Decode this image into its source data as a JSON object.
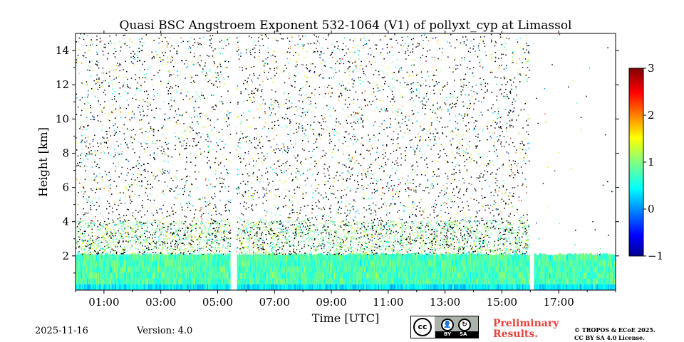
{
  "chart_data": {
    "type": "heatmap",
    "title": "Quasi BSC Angstroem Exponent 532-1064 (V1) of pollyxt_cyp at Limassol",
    "xlabel": "Time [UTC]",
    "ylabel": "Height [km]",
    "x_tick_labels": [
      "01:00",
      "03:00",
      "05:00",
      "07:00",
      "09:00",
      "11:00",
      "13:00",
      "15:00",
      "17:00"
    ],
    "x_ticks_hours": [
      1,
      3,
      5,
      7,
      9,
      11,
      13,
      15,
      17
    ],
    "xlim_hours": [
      0,
      19
    ],
    "y_tick_labels": [
      "2",
      "4",
      "6",
      "8",
      "10",
      "12",
      "14"
    ],
    "y_ticks": [
      2,
      4,
      6,
      8,
      10,
      12,
      14
    ],
    "ylim": [
      0,
      15
    ],
    "colorbar": {
      "min": -1,
      "max": 3,
      "tick_values": [
        -1,
        0,
        1,
        2,
        3
      ],
      "tick_labels": [
        "−1",
        "0",
        "1",
        "2",
        "3"
      ],
      "colormap": "jet"
    },
    "data_gaps_hours": [
      [
        5.45,
        5.65
      ],
      [
        15.95,
        16.1
      ]
    ],
    "cloud_gap_hours": [
      16.0,
      19.0
    ],
    "cloud_gap_base_km": 2.0,
    "boundary_layer_top_km": 2.1,
    "aerosol_layer_top_km": 3.5,
    "typical_value_low_layer": 0.8,
    "typical_value_aerosol_layer": 1.0
  },
  "footer": {
    "date": "2025-11-16",
    "version": "Version: 4.0",
    "preliminary_line1": "Preliminary",
    "preliminary_line2": "Results.",
    "copyright_line1": "© TROPOS & ECoE 2025.",
    "copyright_line2": "CC BY SA 4.0 License.",
    "license_badge": {
      "main": "cc",
      "left": "BY",
      "right": "SA",
      "icon_left": "by-person-icon",
      "icon_right": "sa-share-alike-icon"
    }
  },
  "colors": {
    "noise_dark": "#000000",
    "accent_red": "#e8413a"
  }
}
